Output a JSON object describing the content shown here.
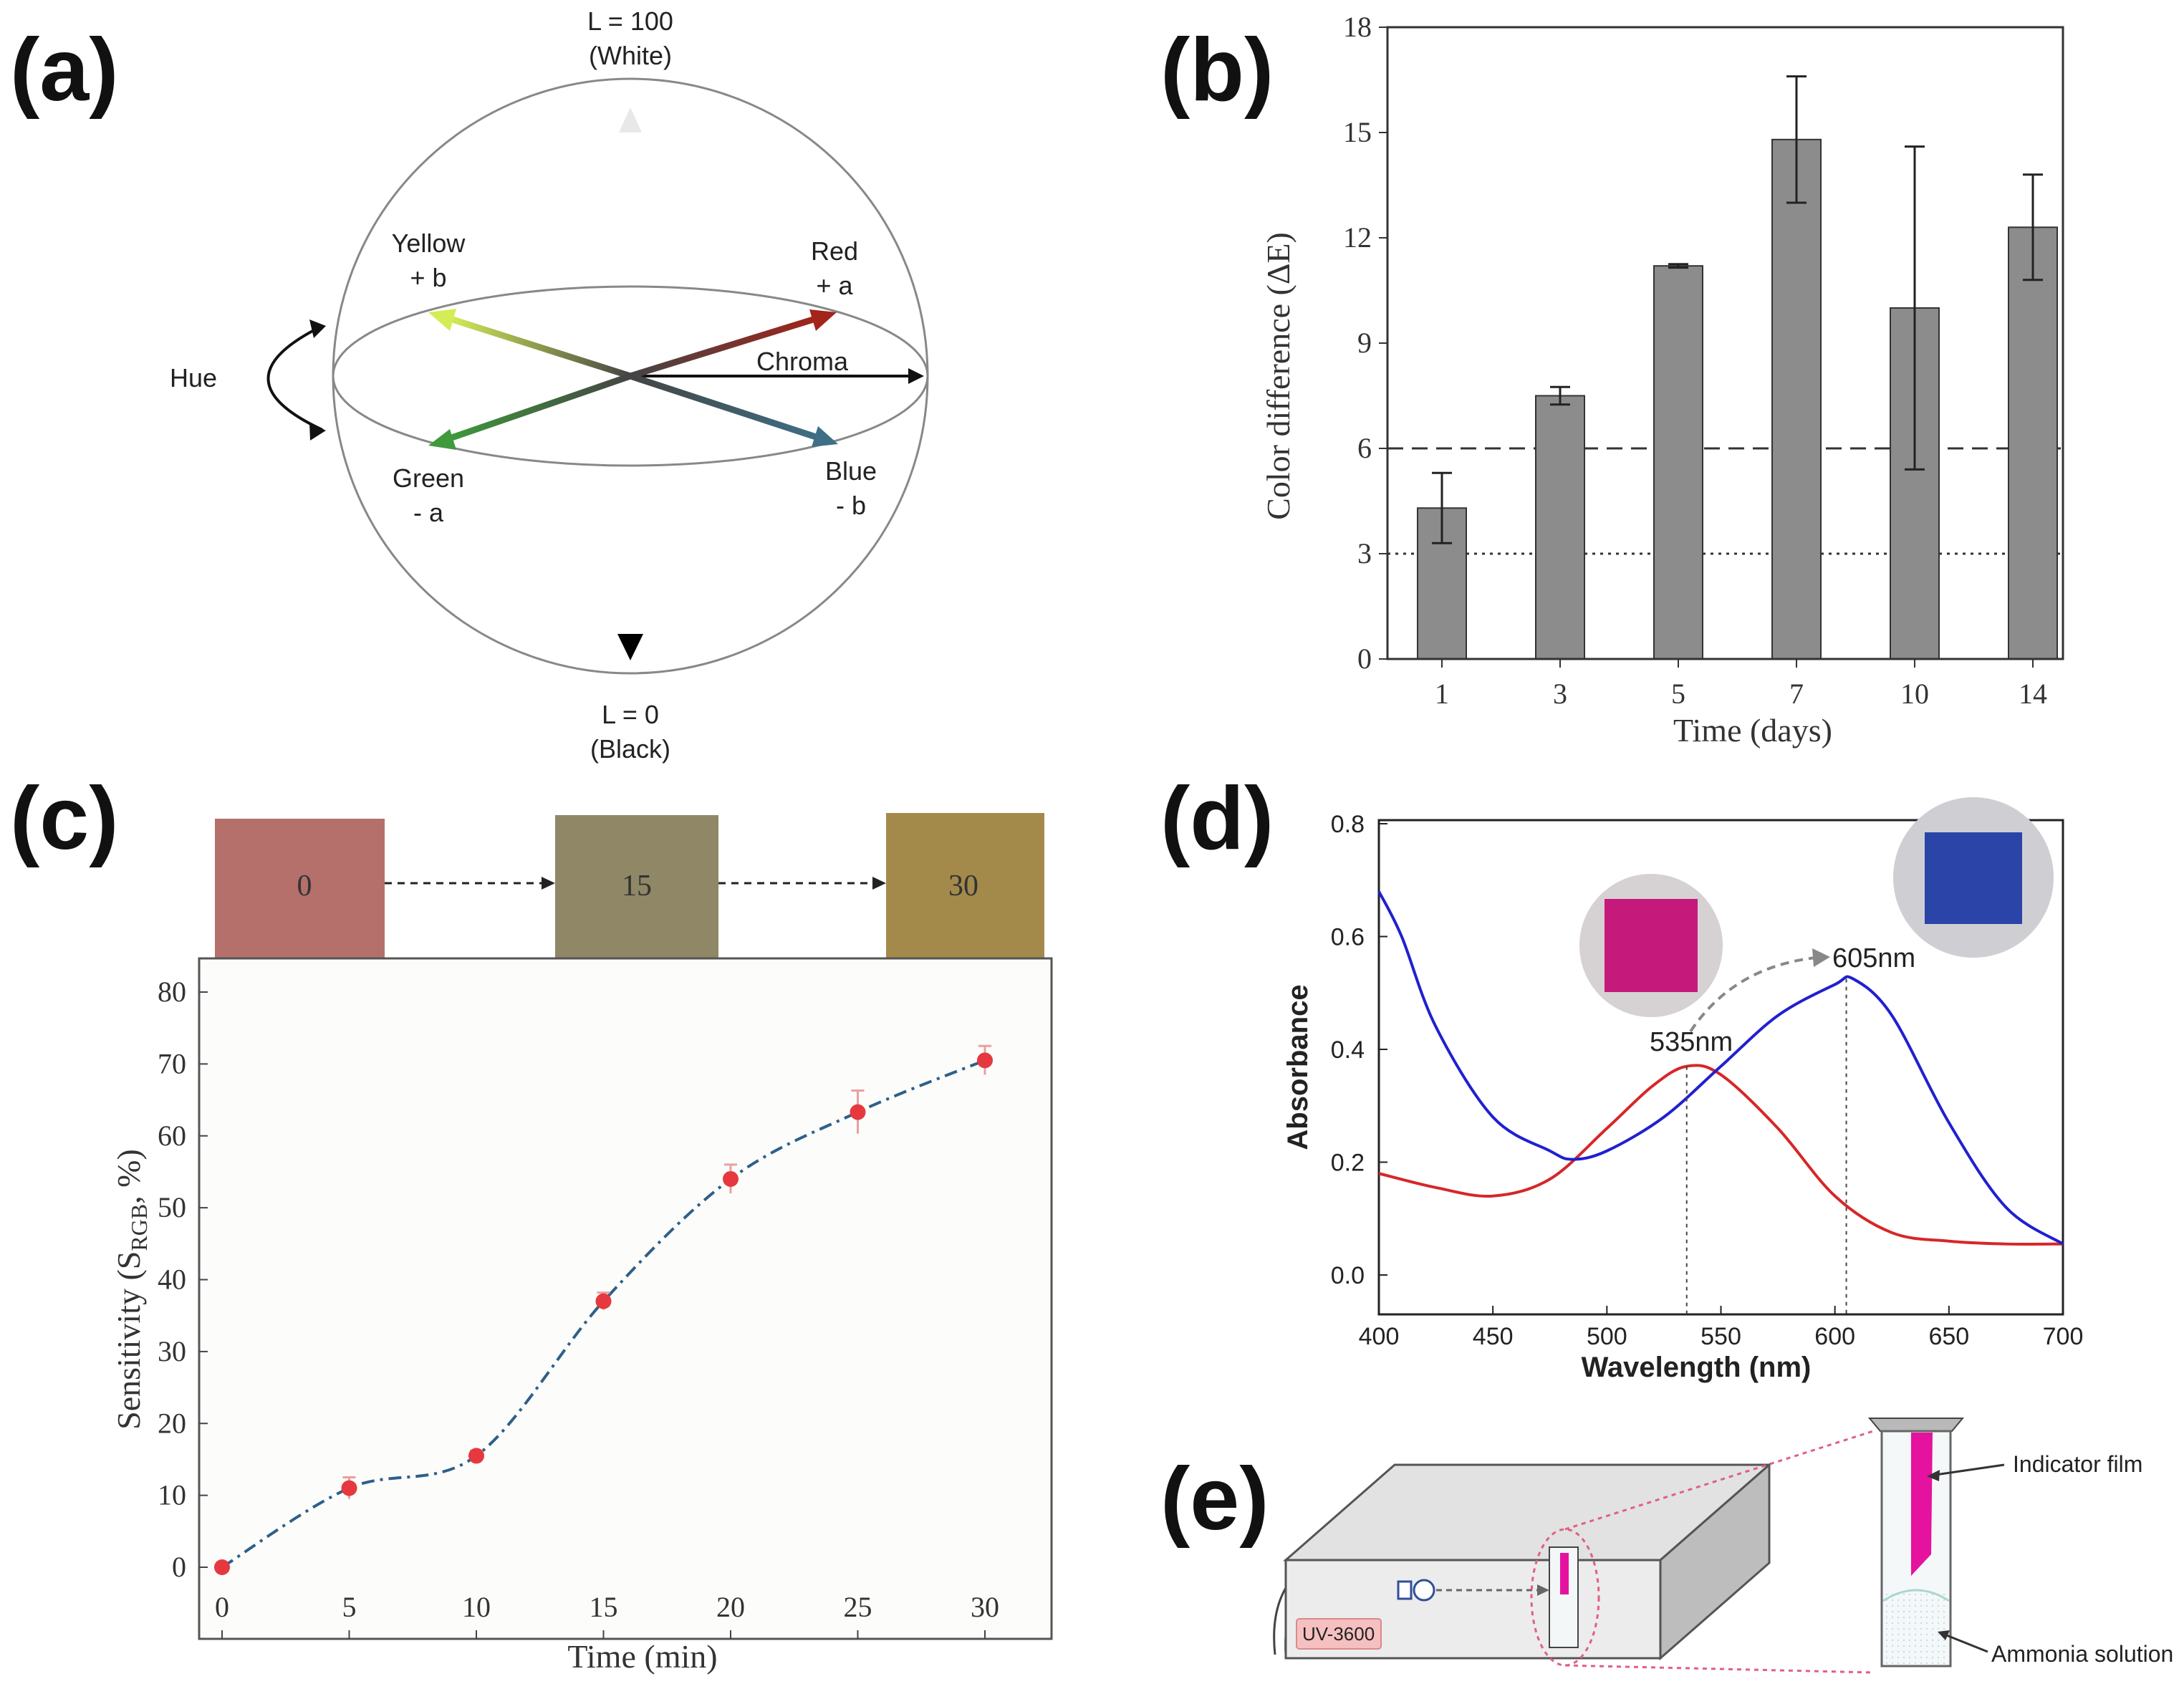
{
  "panels": {
    "a": {
      "label": "(a)",
      "top": "L = 100",
      "top_sub": "(White)",
      "bottom": "L = 0",
      "bottom_sub": "(Black)",
      "yellow": "Yellow",
      "yellow_sub": "+ b",
      "red": "Red",
      "red_sub": "+ a",
      "green": "Green",
      "green_sub": "- a",
      "blue": "Blue",
      "blue_sub": "- b",
      "hue": "Hue",
      "chroma": "Chroma",
      "colors": {
        "yellow": "#c6e04a",
        "red": "#a3241a",
        "green": "#3f9a3c",
        "blue": "#3e6f86"
      }
    },
    "b": {
      "label": "(b)"
    },
    "c": {
      "label": "(c)",
      "swatches": [
        "0",
        "15",
        "30"
      ],
      "swatch_colors": [
        "#b5706b",
        "#8f8766",
        "#a48a4a"
      ]
    },
    "d": {
      "label": "(d)",
      "annotations": [
        "535nm",
        "605nm"
      ]
    },
    "e": {
      "label": "(e)",
      "instrument": "UV-3600",
      "film_label": "Indicator film",
      "solution_label": "Ammonia solution"
    }
  },
  "chart_data": [
    {
      "id": "b",
      "type": "bar",
      "categories": [
        "1",
        "3",
        "5",
        "7",
        "10",
        "14"
      ],
      "values": [
        4.3,
        7.5,
        11.2,
        14.8,
        10.0,
        12.3
      ],
      "errors": [
        1.0,
        0.25,
        0.05,
        1.8,
        4.6,
        1.5
      ],
      "xlabel": "Time (days)",
      "ylabel": "Color difference (ΔE)",
      "ylim": [
        0,
        18
      ],
      "yticks": [
        0,
        3,
        6,
        9,
        12,
        15,
        18
      ],
      "reference_lines": [
        {
          "y": 6,
          "style": "dashed"
        },
        {
          "y": 3,
          "style": "dotted"
        }
      ],
      "bar_color": "#8c8c8c"
    },
    {
      "id": "c",
      "type": "line",
      "x": [
        0,
        5,
        10,
        15,
        20,
        25,
        30
      ],
      "y": [
        0,
        11,
        15.5,
        37,
        54,
        63.3,
        70.5
      ],
      "errors": [
        0.3,
        1.5,
        0.7,
        1.2,
        2.0,
        3.0,
        2.0
      ],
      "xlabel": "Time (min)",
      "ylabel_main": "Sensitivity (S",
      "ylabel_sub": "RGB",
      "ylabel_tail": ", %)",
      "xlim": [
        0,
        30
      ],
      "ylim": [
        0,
        80
      ],
      "xticks": [
        0,
        5,
        10,
        15,
        20,
        25,
        30
      ],
      "yticks": [
        0,
        10,
        20,
        30,
        40,
        50,
        60,
        70,
        80
      ],
      "line_color": "#2e5f8a",
      "marker_color": "#e5393f"
    },
    {
      "id": "d",
      "type": "line",
      "xlabel": "Wavelength (nm)",
      "ylabel": "Absorbance",
      "xlim": [
        400,
        700
      ],
      "ylim": [
        0,
        0.8
      ],
      "xticks": [
        400,
        450,
        500,
        550,
        600,
        650,
        700
      ],
      "yticks": [
        "0.0",
        "0.2",
        "0.4",
        "0.6",
        "0.8"
      ],
      "series": [
        {
          "color": "#d62728",
          "x": [
            400,
            425,
            450,
            475,
            500,
            520,
            535,
            550,
            575,
            600,
            625,
            650,
            675,
            700
          ],
          "y": [
            0.18,
            0.155,
            0.14,
            0.17,
            0.26,
            0.335,
            0.37,
            0.355,
            0.26,
            0.14,
            0.075,
            0.06,
            0.055,
            0.055
          ]
        },
        {
          "color": "#2020d0",
          "x": [
            400,
            410,
            425,
            450,
            475,
            485,
            500,
            525,
            550,
            575,
            600,
            608,
            625,
            650,
            675,
            700
          ],
          "y": [
            0.68,
            0.6,
            0.44,
            0.28,
            0.22,
            0.205,
            0.22,
            0.28,
            0.37,
            0.46,
            0.515,
            0.525,
            0.46,
            0.27,
            0.12,
            0.055
          ]
        }
      ],
      "peaks": [
        535,
        605
      ]
    }
  ]
}
